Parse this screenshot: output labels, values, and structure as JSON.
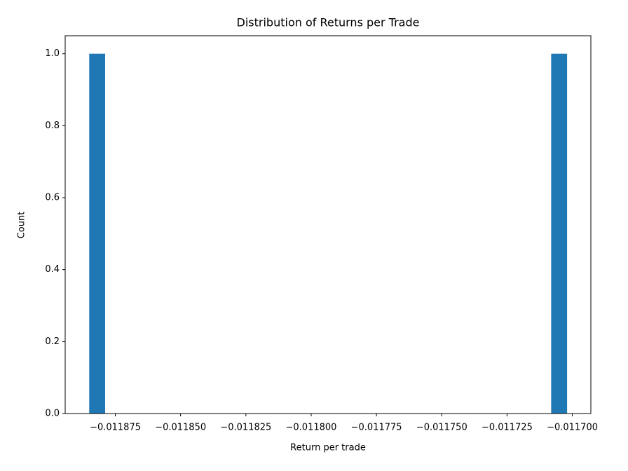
{
  "chart_data": {
    "type": "histogram",
    "title": "Distribution of Returns per Trade",
    "x_label": "Return per trade",
    "y_label": "Count",
    "color": "#1f77b4",
    "bins": [
      -0.011885,
      -0.0118789,
      -0.0118728,
      -0.0118667,
      -0.0118606,
      -0.0118545,
      -0.0118484,
      -0.0118423,
      -0.0118362,
      -0.0118301,
      -0.011824,
      -0.0118179,
      -0.0118118,
      -0.0118057,
      -0.0117996,
      -0.0117935,
      -0.0117874,
      -0.0117813,
      -0.0117752,
      -0.0117691,
      -0.011763,
      -0.0117569,
      -0.0117508,
      -0.0117447,
      -0.0117386,
      -0.0117325,
      -0.0117264,
      -0.0117203,
      -0.0117142,
      -0.0117081,
      -0.011702
    ],
    "values": [
      1,
      0,
      0,
      0,
      0,
      0,
      0,
      0,
      0,
      0,
      0,
      0,
      0,
      0,
      0,
      0,
      0,
      0,
      0,
      0,
      0,
      0,
      0,
      0,
      0,
      0,
      0,
      0,
      0,
      1
    ],
    "xlim": [
      -0.0118942,
      -0.0116929
    ],
    "xticks": [
      {
        "value": -0.011875,
        "label": "−0.011875"
      },
      {
        "value": -0.01185,
        "label": "−0.011850"
      },
      {
        "value": -0.011825,
        "label": "−0.011825"
      },
      {
        "value": -0.0118,
        "label": "−0.011800"
      },
      {
        "value": -0.011775,
        "label": "−0.011775"
      },
      {
        "value": -0.01175,
        "label": "−0.011750"
      },
      {
        "value": -0.011725,
        "label": "−0.011725"
      },
      {
        "value": -0.0117,
        "label": "−0.011700"
      }
    ],
    "ylim": [
      0,
      1.05
    ],
    "yticks": [
      {
        "value": 0,
        "label": "0.0"
      },
      {
        "value": 0.2,
        "label": "0.2"
      },
      {
        "value": 0.4,
        "label": "0.4"
      },
      {
        "value": 0.6,
        "label": "0.6"
      },
      {
        "value": 0.8,
        "label": "0.8"
      },
      {
        "value": 1,
        "label": "1.0"
      }
    ]
  }
}
